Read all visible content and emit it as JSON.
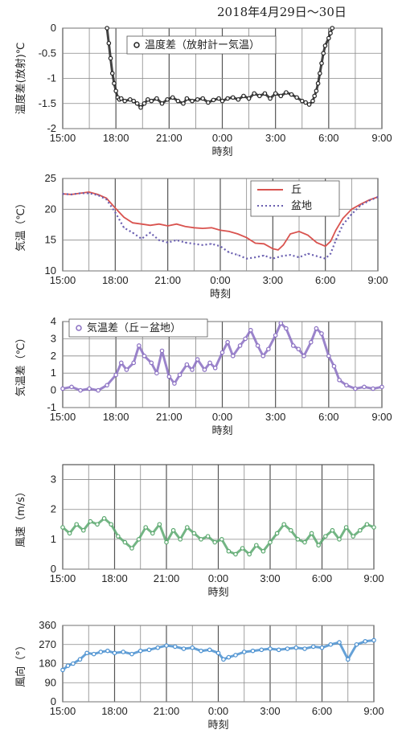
{
  "page": {
    "title": "2018年4月29日～30日"
  },
  "chart_data": [
    {
      "id": "c1",
      "type": "scatter",
      "legend": [
        "温度差（放射計ー気温）"
      ],
      "ylabel": "温度差(放射)℃",
      "xlabel": "時刻",
      "ylim": [
        -2,
        0
      ],
      "yticks": [
        "0",
        "-0.5",
        "-1",
        "-1.5",
        "-2"
      ],
      "xlim": [
        15,
        33
      ],
      "xticks": [
        "15:00",
        "18:00",
        "21:00",
        "0:00",
        "3:00",
        "6:00",
        "9:00"
      ],
      "colors": [
        "#222222"
      ],
      "series": [
        {
          "x": [
            17.5,
            17.6,
            17.7,
            17.8,
            17.9,
            18.0,
            18.1,
            18.2,
            18.3,
            18.5,
            18.8,
            19.0,
            19.2,
            19.4,
            19.6,
            19.8,
            20.0,
            20.3,
            20.6,
            20.9,
            21.2,
            21.5,
            21.8,
            22.0,
            22.3,
            22.6,
            22.9,
            23.2,
            23.5,
            23.8,
            24.0,
            24.3,
            24.6,
            24.9,
            25.2,
            25.5,
            25.8,
            26.1,
            26.4,
            26.7,
            27.0,
            27.3,
            27.6,
            27.9,
            28.2,
            28.5,
            28.7,
            28.9,
            29.1,
            29.2,
            29.3,
            29.4,
            29.5,
            29.6,
            29.7,
            29.8,
            30.0,
            30.1,
            30.2
          ],
          "y": [
            0,
            -0.3,
            -0.6,
            -0.9,
            -1.1,
            -1.25,
            -1.38,
            -1.42,
            -1.4,
            -1.45,
            -1.42,
            -1.45,
            -1.5,
            -1.58,
            -1.5,
            -1.42,
            -1.45,
            -1.4,
            -1.5,
            -1.42,
            -1.38,
            -1.45,
            -1.5,
            -1.4,
            -1.45,
            -1.42,
            -1.4,
            -1.48,
            -1.43,
            -1.4,
            -1.45,
            -1.4,
            -1.38,
            -1.42,
            -1.35,
            -1.4,
            -1.3,
            -1.35,
            -1.3,
            -1.4,
            -1.3,
            -1.35,
            -1.28,
            -1.32,
            -1.38,
            -1.45,
            -1.48,
            -1.52,
            -1.45,
            -1.35,
            -1.25,
            -1.1,
            -0.9,
            -0.7,
            -0.5,
            -0.35,
            -0.2,
            -0.1,
            0
          ]
        }
      ]
    },
    {
      "id": "c2",
      "type": "line",
      "legend": [
        "丘",
        "盆地"
      ],
      "ylabel": "気温（℃）",
      "xlabel": "時刻",
      "ylim": [
        10,
        25
      ],
      "yticks": [
        "25",
        "20",
        "15",
        "10"
      ],
      "xlim": [
        15,
        33
      ],
      "xticks": [
        "15:00",
        "18:00",
        "21:00",
        "0:00",
        "3:00",
        "6:00",
        "9:00"
      ],
      "colors": [
        "#d9534f",
        "#6a5fb0"
      ],
      "series": [
        {
          "name": "丘",
          "x": [
            15,
            15.5,
            16,
            16.5,
            17,
            17.5,
            18,
            18.5,
            19,
            19.5,
            20,
            20.5,
            21,
            21.5,
            22,
            22.5,
            23,
            23.5,
            24,
            24.5,
            25,
            25.5,
            26,
            26.5,
            27,
            27.3,
            27.6,
            28,
            28.5,
            29,
            29.5,
            30,
            30.3,
            30.6,
            31,
            31.5,
            32,
            32.5,
            33
          ],
          "y": [
            22.5,
            22.4,
            22.6,
            22.8,
            22.4,
            21.8,
            20.2,
            18.7,
            17.8,
            17.6,
            17.4,
            17.6,
            17.3,
            17.6,
            17.2,
            17.0,
            16.9,
            17.0,
            16.6,
            16.4,
            16.0,
            15.4,
            14.5,
            14.4,
            13.6,
            13.4,
            14.2,
            16.0,
            16.4,
            15.8,
            14.6,
            14.0,
            14.8,
            16.6,
            18.5,
            20.0,
            20.8,
            21.5,
            22.0
          ]
        },
        {
          "name": "盆地",
          "x": [
            15,
            15.5,
            16,
            16.5,
            17,
            17.5,
            18,
            18.5,
            19,
            19.5,
            20,
            20.5,
            21,
            21.5,
            22,
            22.5,
            23,
            23.5,
            24,
            24.5,
            25,
            25.5,
            26,
            26.5,
            27,
            27.5,
            28,
            28.5,
            29,
            29.5,
            30,
            30.3,
            30.6,
            31,
            31.5,
            32,
            32.5,
            33
          ],
          "y": [
            22.5,
            22.4,
            22.6,
            22.6,
            22.3,
            21.6,
            19.5,
            17.0,
            16.2,
            15.2,
            16.2,
            15.0,
            14.6,
            15.0,
            14.6,
            14.4,
            14.2,
            14.4,
            14.0,
            13.0,
            12.6,
            12.0,
            12.2,
            12.5,
            12.0,
            12.4,
            12.6,
            12.2,
            12.8,
            12.4,
            12.0,
            12.8,
            15.0,
            17.5,
            19.2,
            20.6,
            21.4,
            22.0
          ]
        }
      ]
    },
    {
      "id": "c3",
      "type": "scatter",
      "legend": [
        "気温差（丘－盆地）"
      ],
      "ylabel": "気温差（℃）",
      "xlabel": "時刻",
      "ylim": [
        -1,
        4
      ],
      "yticks": [
        "4",
        "3",
        "2",
        "1",
        "0",
        "-1"
      ],
      "xlim": [
        15,
        33
      ],
      "xticks": [
        "15:00",
        "18:00",
        "21:00",
        "0:00",
        "3:00",
        "6:00",
        "9:00"
      ],
      "colors": [
        "#8a6fc2"
      ],
      "series": [
        {
          "x": [
            15,
            15.5,
            16,
            16.5,
            17,
            17.5,
            18,
            18.3,
            18.6,
            19,
            19.3,
            19.6,
            20,
            20.3,
            20.6,
            21,
            21.3,
            21.6,
            22,
            22.3,
            22.6,
            23,
            23.3,
            23.6,
            24,
            24.3,
            24.6,
            25,
            25.3,
            25.6,
            26,
            26.3,
            26.6,
            27,
            27.3,
            27.6,
            28,
            28.3,
            28.6,
            29,
            29.3,
            29.6,
            30,
            30.3,
            30.6,
            31,
            31.5,
            32,
            32.5,
            33
          ],
          "y": [
            0.1,
            0.2,
            0.0,
            0.1,
            0.0,
            0.3,
            0.9,
            1.6,
            1.2,
            1.6,
            2.6,
            2.0,
            1.6,
            1.0,
            2.3,
            0.8,
            0.4,
            0.9,
            1.5,
            1.2,
            1.8,
            1.2,
            1.6,
            1.3,
            2.2,
            2.8,
            2.0,
            2.6,
            3.0,
            3.5,
            2.6,
            2.0,
            2.4,
            3.2,
            3.9,
            3.6,
            2.6,
            2.4,
            2.0,
            2.8,
            3.6,
            3.3,
            2.0,
            1.4,
            0.6,
            0.3,
            0.1,
            0.2,
            0.1,
            0.2
          ]
        }
      ]
    },
    {
      "id": "c4",
      "type": "scatter",
      "ylabel": "風速（m/s）",
      "xlabel": "時刻",
      "ylim": [
        0,
        3.5
      ],
      "yticks": [
        "3",
        "2",
        "1",
        "0"
      ],
      "xlim": [
        15,
        33
      ],
      "xticks": [
        "15:00",
        "18:00",
        "21:00",
        "0:00",
        "3:00",
        "6:00",
        "9:00"
      ],
      "colors": [
        "#5aa86e"
      ],
      "series": [
        {
          "x": [
            15,
            15.4,
            15.8,
            16.2,
            16.6,
            17,
            17.4,
            17.8,
            18.2,
            18.6,
            19,
            19.4,
            19.8,
            20.2,
            20.6,
            21,
            21.4,
            21.8,
            22.2,
            22.6,
            23,
            23.4,
            23.8,
            24.2,
            24.6,
            25,
            25.4,
            25.8,
            26.2,
            26.6,
            27,
            27.4,
            27.8,
            28.2,
            28.6,
            29,
            29.4,
            29.8,
            30.2,
            30.6,
            31,
            31.4,
            31.8,
            32.2,
            32.6,
            33
          ],
          "y": [
            1.4,
            1.2,
            1.5,
            1.3,
            1.6,
            1.5,
            1.7,
            1.5,
            1.1,
            0.9,
            0.7,
            1.0,
            1.4,
            1.2,
            1.5,
            0.9,
            1.3,
            1.0,
            1.4,
            1.2,
            1.0,
            1.1,
            0.9,
            1.0,
            0.6,
            0.5,
            0.7,
            0.5,
            0.8,
            0.6,
            0.9,
            1.2,
            1.5,
            1.3,
            1.0,
            0.9,
            1.2,
            0.8,
            1.1,
            1.3,
            1.0,
            1.4,
            1.1,
            1.3,
            1.5,
            1.4
          ]
        }
      ]
    },
    {
      "id": "c5",
      "type": "scatter",
      "ylabel": "風向（°）",
      "xlabel": "時刻",
      "ylim": [
        0,
        360
      ],
      "yticks": [
        "360",
        "270",
        "180",
        "90",
        "0"
      ],
      "xlim": [
        15,
        33
      ],
      "xticks": [
        "15:00",
        "18:00",
        "21:00",
        "0:00",
        "3:00",
        "6:00",
        "9:00"
      ],
      "colors": [
        "#4a90d0"
      ],
      "series": [
        {
          "x": [
            15,
            15.3,
            15.6,
            16,
            16.4,
            16.8,
            17.2,
            17.6,
            18,
            18.5,
            19,
            19.5,
            20,
            20.5,
            21,
            21.5,
            22,
            22.5,
            23,
            23.5,
            24,
            24.3,
            24.6,
            25,
            25.5,
            26,
            26.5,
            27,
            27.5,
            28,
            28.5,
            29,
            29.5,
            30,
            30.5,
            31,
            31.5,
            32,
            32.5,
            33
          ],
          "y": [
            150,
            170,
            180,
            200,
            230,
            225,
            235,
            240,
            230,
            235,
            225,
            240,
            245,
            255,
            265,
            260,
            250,
            255,
            240,
            245,
            230,
            200,
            210,
            220,
            235,
            240,
            245,
            250,
            245,
            250,
            255,
            250,
            260,
            255,
            270,
            280,
            200,
            270,
            285,
            290
          ]
        }
      ]
    }
  ]
}
